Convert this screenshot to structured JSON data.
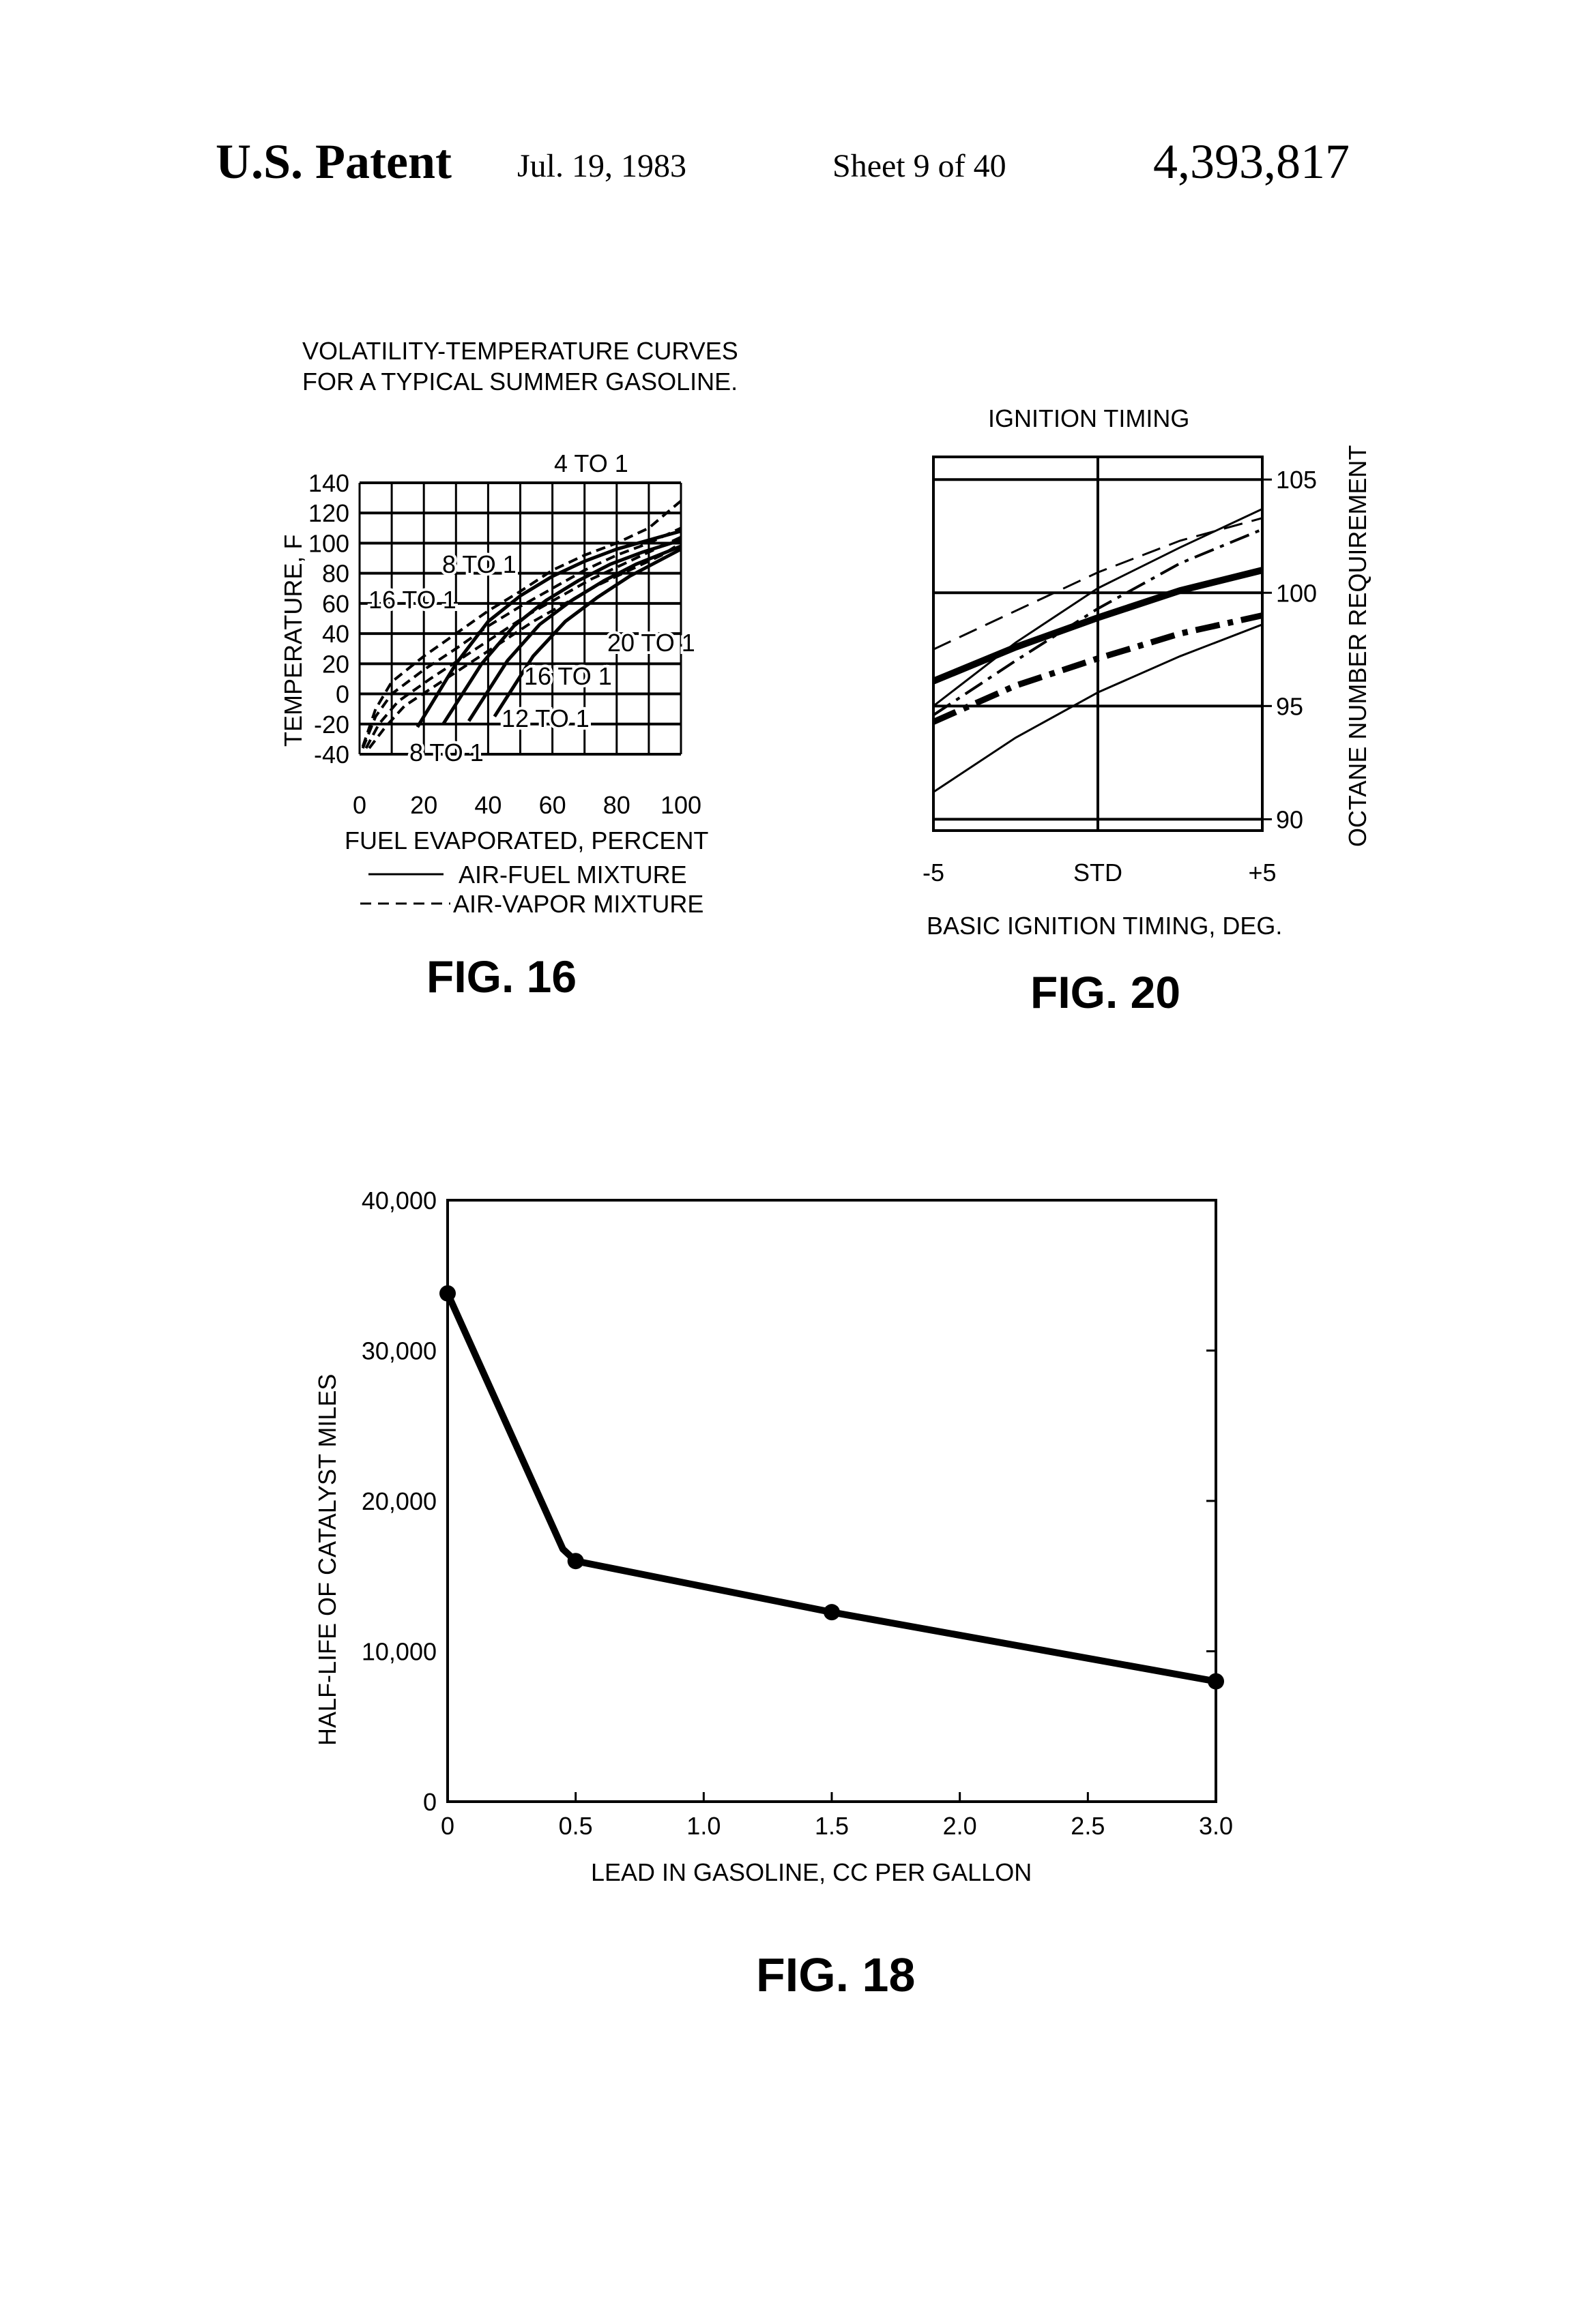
{
  "header": {
    "patent": "U.S. Patent",
    "date": "Jul. 19, 1983",
    "sheet": "Sheet 9 of 40",
    "number": "4,393,817"
  },
  "chart_data": [
    {
      "id": "fig16",
      "type": "line",
      "title": "VOLATILITY-TEMPERATURE CURVES",
      "subtitle": "FOR A TYPICAL SUMMER GASOLINE.",
      "xlabel": "FUEL EVAPORATED, PERCENT",
      "ylabel": "TEMPERATURE, F",
      "caption": "FIG. 16",
      "xlim": [
        0,
        100
      ],
      "ylim": [
        -40,
        140
      ],
      "xticks": [
        "0",
        "20",
        "40",
        "60",
        "80",
        "100"
      ],
      "yticks": [
        "140",
        "120",
        "100",
        "80",
        "60",
        "40",
        "20",
        "0",
        "-20",
        "-40"
      ],
      "grid": true,
      "legend": [
        "AIR-FUEL MIXTURE",
        "AIR-VAPOR MIXTURE"
      ],
      "annotations": [
        "4 TO 1",
        "8 TO 1",
        "16 TO 1",
        "20 TO 1",
        "16 TO 1",
        "12 TO 1",
        "8 TO 1"
      ],
      "series": [
        {
          "style": "solid",
          "x": [
            18,
            30,
            40,
            50,
            60,
            70,
            80,
            90,
            100
          ],
          "y": [
            -22,
            20,
            48,
            65,
            78,
            88,
            96,
            102,
            108
          ]
        },
        {
          "style": "solid",
          "x": [
            26,
            38,
            48,
            58,
            68,
            78,
            88,
            100
          ],
          "y": [
            -20,
            20,
            45,
            62,
            75,
            86,
            94,
            102
          ]
        },
        {
          "style": "solid",
          "x": [
            34,
            46,
            56,
            66,
            76,
            86,
            100
          ],
          "y": [
            -18,
            22,
            46,
            62,
            75,
            86,
            98
          ]
        },
        {
          "style": "solid",
          "x": [
            42,
            54,
            64,
            74,
            84,
            100
          ],
          "y": [
            -15,
            25,
            48,
            64,
            78,
            96
          ]
        },
        {
          "style": "dashed",
          "x": [
            1,
            5,
            10,
            20,
            30,
            40,
            50,
            60,
            70,
            80,
            90,
            100
          ],
          "y": [
            -35,
            -10,
            8,
            25,
            40,
            55,
            68,
            82,
            92,
            100,
            110,
            128
          ]
        },
        {
          "style": "dashed",
          "x": [
            1,
            5,
            10,
            20,
            30,
            40,
            50,
            60,
            70,
            80,
            90,
            100
          ],
          "y": [
            -36,
            -15,
            0,
            16,
            30,
            45,
            58,
            70,
            82,
            92,
            100,
            110
          ]
        },
        {
          "style": "dashed",
          "x": [
            2,
            6,
            12,
            22,
            32,
            42,
            52,
            62,
            72,
            82,
            92,
            100
          ],
          "y": [
            -36,
            -20,
            -5,
            10,
            24,
            38,
            52,
            64,
            76,
            86,
            96,
            104
          ]
        },
        {
          "style": "dashed",
          "x": [
            3,
            8,
            14,
            24,
            34,
            44,
            54,
            64,
            74,
            84,
            94,
            100
          ],
          "y": [
            -36,
            -22,
            -8,
            6,
            20,
            34,
            48,
            60,
            72,
            82,
            92,
            100
          ]
        }
      ]
    },
    {
      "id": "fig20",
      "type": "line",
      "title": "IGNITION TIMING",
      "xlabel": "BASIC IGNITION TIMING, DEG.",
      "ylabel": "OCTANE NUMBER REQUIREMENT",
      "caption": "FIG. 20",
      "xlim": [
        -5,
        5
      ],
      "ylim": [
        89.5,
        106
      ],
      "xticks": [
        "-5",
        "STD",
        "+5"
      ],
      "yticks": [
        "105",
        "100",
        "95",
        "90"
      ],
      "series": [
        {
          "style": "dashed",
          "x": [
            -5,
            -2.5,
            0,
            2.5,
            5
          ],
          "y": [
            97.5,
            99.2,
            100.9,
            102.3,
            103.3
          ]
        },
        {
          "style": "solid",
          "x": [
            -5,
            -2.5,
            0,
            2.5,
            5
          ],
          "y": [
            95.0,
            97.8,
            100.2,
            102.0,
            103.7
          ]
        },
        {
          "style": "dashdot",
          "x": [
            -5,
            -2.5,
            0,
            2.5,
            5
          ],
          "y": [
            94.6,
            97.0,
            99.3,
            101.3,
            102.8
          ]
        },
        {
          "style": "bold",
          "x": [
            -5,
            -2.5,
            0,
            2.5,
            5
          ],
          "y": [
            96.1,
            97.6,
            98.9,
            100.1,
            101.0
          ]
        },
        {
          "style": "bold-dashdot",
          "x": [
            -5,
            -2.5,
            0,
            2.5,
            5
          ],
          "y": [
            94.3,
            95.9,
            97.1,
            98.2,
            99.0
          ]
        },
        {
          "style": "solid",
          "x": [
            -5,
            -2.5,
            0,
            2.5,
            5
          ],
          "y": [
            91.2,
            93.6,
            95.6,
            97.2,
            98.6
          ]
        }
      ]
    },
    {
      "id": "fig18",
      "type": "line",
      "xlabel": "LEAD IN GASOLINE, CC PER GALLON",
      "ylabel": "HALF-LIFE OF CATALYST MILES",
      "caption": "FIG. 18",
      "xlim": [
        0,
        3.0
      ],
      "ylim": [
        0,
        40000
      ],
      "xticks": [
        "0",
        "0.5",
        "1.0",
        "1.5",
        "2.0",
        "2.5",
        "3.0"
      ],
      "yticks": [
        "40,000",
        "30,000",
        "20,000",
        "10,000",
        "0"
      ],
      "series": [
        {
          "style": "bold",
          "x": [
            0,
            0.45,
            0.5,
            1.5,
            3.0
          ],
          "y": [
            33800,
            16800,
            16000,
            12600,
            8000
          ]
        }
      ],
      "markers": {
        "x": [
          0,
          0.5,
          1.5,
          3.0
        ],
        "y": [
          33800,
          16000,
          12600,
          8000
        ]
      }
    }
  ]
}
